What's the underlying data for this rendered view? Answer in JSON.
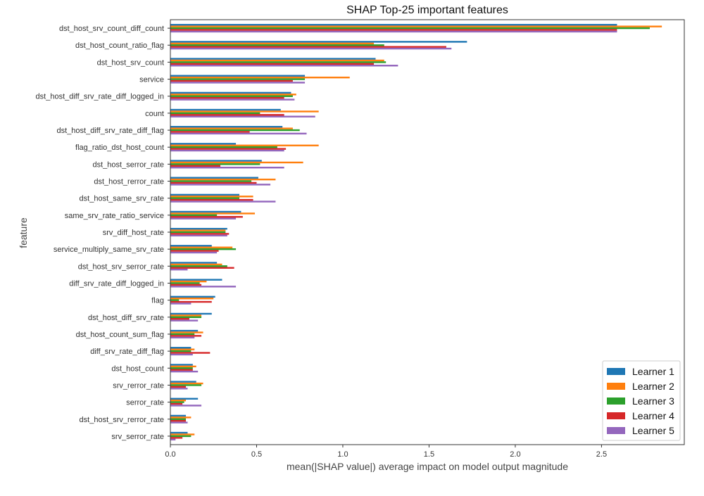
{
  "chart_data": {
    "type": "bar",
    "orientation": "horizontal",
    "title": "SHAP Top-25 important features",
    "xlabel": "mean(|SHAP value|) average impact on model output magnitude",
    "ylabel": "feature",
    "xlim": [
      0,
      2.98
    ],
    "xticks": [
      0.0,
      0.5,
      1.0,
      1.5,
      2.0,
      2.5
    ],
    "xtick_labels": [
      "0.0",
      "0.5",
      "1.0",
      "1.5",
      "2.0",
      "2.5"
    ],
    "grid": false,
    "legend_position": "bottom-right",
    "categories": [
      "dst_host_srv_count_diff_count",
      "dst_host_count_ratio_flag",
      "dst_host_srv_count",
      "service",
      "dst_host_diff_srv_rate_diff_logged_in",
      "count",
      "dst_host_diff_srv_rate_diff_flag",
      "flag_ratio_dst_host_count",
      "dst_host_serror_rate",
      "dst_host_rerror_rate",
      "dst_host_same_srv_rate",
      "same_srv_rate_ratio_service",
      "srv_diff_host_rate",
      "service_multiply_same_srv_rate",
      "dst_host_srv_serror_rate",
      "diff_srv_rate_diff_logged_in",
      "flag",
      "dst_host_diff_srv_rate",
      "dst_host_count_sum_flag",
      "diff_srv_rate_diff_flag",
      "dst_host_count",
      "srv_rerror_rate",
      "serror_rate",
      "dst_host_srv_rerror_rate",
      "srv_serror_rate"
    ],
    "series": [
      {
        "name": "Learner 1",
        "color": "#1f77b4",
        "values": [
          2.59,
          1.72,
          1.19,
          0.78,
          0.7,
          0.64,
          0.65,
          0.38,
          0.53,
          0.51,
          0.4,
          0.41,
          0.33,
          0.24,
          0.27,
          0.3,
          0.26,
          0.24,
          0.16,
          0.12,
          0.13,
          0.15,
          0.16,
          0.09,
          0.1
        ]
      },
      {
        "name": "Learner 2",
        "color": "#ff7f0e",
        "values": [
          2.85,
          1.18,
          1.24,
          1.04,
          0.73,
          0.86,
          0.71,
          0.86,
          0.77,
          0.61,
          0.48,
          0.49,
          0.32,
          0.36,
          0.3,
          0.21,
          0.25,
          0.18,
          0.19,
          0.14,
          0.15,
          0.19,
          0.09,
          0.12,
          0.14
        ]
      },
      {
        "name": "Learner 3",
        "color": "#2ca02c",
        "values": [
          2.78,
          1.24,
          1.25,
          0.78,
          0.71,
          0.52,
          0.75,
          0.62,
          0.52,
          0.47,
          0.4,
          0.27,
          0.32,
          0.38,
          0.33,
          0.17,
          0.05,
          0.18,
          0.14,
          0.12,
          0.13,
          0.18,
          0.08,
          0.09,
          0.12
        ]
      },
      {
        "name": "Learner 4",
        "color": "#d62728",
        "values": [
          2.59,
          1.6,
          1.18,
          0.71,
          0.66,
          0.66,
          0.46,
          0.67,
          0.29,
          0.5,
          0.48,
          0.42,
          0.34,
          0.28,
          0.37,
          0.18,
          0.24,
          0.11,
          0.18,
          0.23,
          0.13,
          0.09,
          0.07,
          0.09,
          0.07
        ]
      },
      {
        "name": "Learner 5",
        "color": "#9467bd",
        "values": [
          2.59,
          1.63,
          1.32,
          0.78,
          0.72,
          0.84,
          0.79,
          0.66,
          0.66,
          0.58,
          0.61,
          0.38,
          0.33,
          0.27,
          0.1,
          0.38,
          0.12,
          0.16,
          0.14,
          0.13,
          0.16,
          0.1,
          0.18,
          0.1,
          0.03
        ]
      }
    ]
  }
}
